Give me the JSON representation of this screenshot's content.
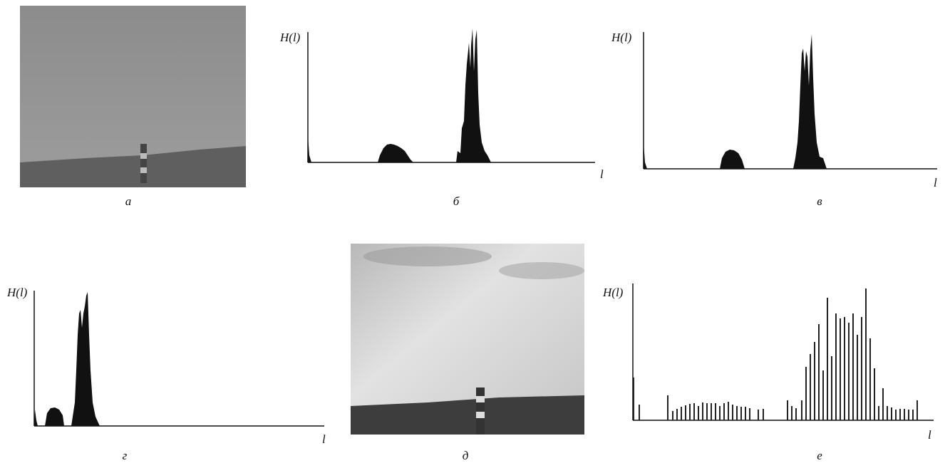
{
  "panels": [
    {
      "label": "а"
    },
    {
      "label": "б",
      "y_axis_label": "H(l)",
      "x_axis_label": "l"
    },
    {
      "label": "в",
      "y_axis_label": "H(l)",
      "x_axis_label": "l"
    },
    {
      "label": "г",
      "y_axis_label": "H(l)",
      "x_axis_label": "l"
    },
    {
      "label": "д"
    },
    {
      "label": "е",
      "y_axis_label": "H(l)",
      "x_axis_label": "l"
    }
  ]
}
